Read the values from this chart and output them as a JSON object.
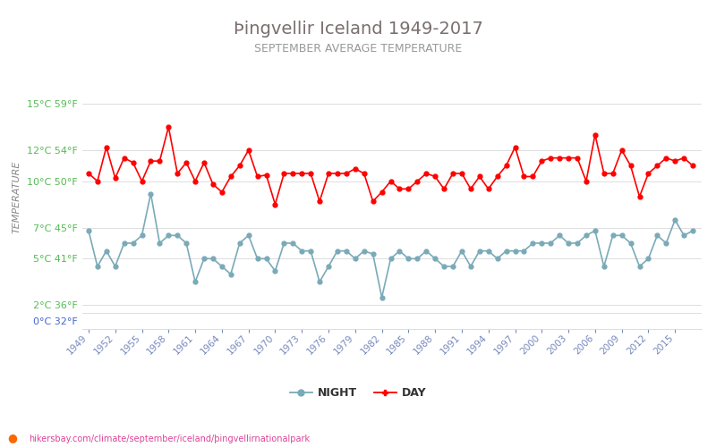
{
  "title": "Þingvellir Iceland 1949-2017",
  "subtitle": "SEPTEMBER AVERAGE TEMPERATURE",
  "ylabel": "TEMPERATURE",
  "years": [
    1949,
    1950,
    1951,
    1952,
    1953,
    1954,
    1955,
    1956,
    1957,
    1958,
    1959,
    1960,
    1961,
    1962,
    1963,
    1964,
    1965,
    1966,
    1967,
    1968,
    1969,
    1970,
    1971,
    1972,
    1973,
    1974,
    1975,
    1976,
    1977,
    1978,
    1979,
    1980,
    1981,
    1982,
    1983,
    1984,
    1985,
    1986,
    1987,
    1988,
    1989,
    1990,
    1991,
    1992,
    1993,
    1994,
    1995,
    1996,
    1997,
    1998,
    1999,
    2000,
    2001,
    2002,
    2003,
    2004,
    2005,
    2006,
    2007,
    2008,
    2009,
    2010,
    2011,
    2012,
    2013,
    2014,
    2015,
    2016,
    2017
  ],
  "day": [
    10.5,
    10.0,
    12.2,
    10.2,
    11.5,
    11.2,
    10.0,
    11.3,
    11.3,
    13.5,
    10.5,
    11.2,
    10.0,
    11.2,
    9.8,
    9.3,
    10.3,
    11.0,
    12.0,
    10.3,
    10.4,
    8.5,
    10.5,
    10.5,
    10.5,
    10.5,
    8.7,
    10.5,
    10.5,
    10.5,
    10.8,
    10.5,
    8.7,
    9.3,
    10.0,
    9.5,
    9.5,
    10.0,
    10.5,
    10.3,
    9.5,
    10.5,
    10.5,
    9.5,
    10.3,
    9.5,
    10.3,
    11.0,
    12.2,
    10.3,
    10.3,
    11.3,
    11.5,
    11.5,
    11.5,
    11.5,
    10.0,
    13.0,
    10.5,
    10.5,
    12.0,
    11.0,
    9.0,
    10.5,
    11.0,
    11.5,
    11.3,
    11.5,
    11.0
  ],
  "night": [
    6.8,
    4.5,
    5.5,
    4.5,
    6.0,
    6.0,
    6.5,
    9.2,
    6.0,
    6.5,
    6.5,
    6.0,
    3.5,
    5.0,
    5.0,
    4.5,
    4.0,
    6.0,
    6.5,
    5.0,
    5.0,
    4.2,
    6.0,
    6.0,
    5.5,
    5.5,
    3.5,
    4.5,
    5.5,
    5.5,
    5.0,
    5.5,
    5.3,
    2.5,
    5.0,
    5.5,
    5.0,
    5.0,
    5.5,
    5.0,
    4.5,
    4.5,
    5.5,
    4.5,
    5.5,
    5.5,
    5.0,
    5.5,
    5.5,
    5.5,
    6.0,
    6.0,
    6.0,
    6.5,
    6.0,
    6.0,
    6.5,
    6.8,
    4.5,
    6.5,
    6.5,
    6.0,
    4.5,
    5.0,
    6.5,
    6.0,
    7.5,
    6.5,
    6.8
  ],
  "xtick_years": [
    1949,
    1952,
    1955,
    1958,
    1961,
    1964,
    1967,
    1970,
    1973,
    1976,
    1979,
    1982,
    1985,
    1988,
    1991,
    1994,
    1997,
    2000,
    2003,
    2006,
    2009,
    2012,
    2015
  ],
  "main_yticks_c": [
    2,
    5,
    7,
    10,
    12,
    15
  ],
  "main_ytick_labels": [
    "2°C 36°F",
    "5°C 41°F",
    "7°C 45°F",
    "10°C 50°F",
    "12°C 54°F",
    "15°C 59°F"
  ],
  "zero_label": "0°C 32°F",
  "day_color": "#ff0000",
  "night_color": "#7aaab8",
  "title_color": "#7a6e6e",
  "subtitle_color": "#999999",
  "ytick_color": "#55bb55",
  "xtick_color": "#7788bb",
  "zero_label_color": "#4466cc",
  "ylabel_color": "#888888",
  "grid_color": "#dddddd",
  "bg_color": "#ffffff",
  "watermark_dot_color": "#ff6600",
  "watermark_text_color": "#dd4499",
  "watermark": "hikersbay.com/climate/september/iceland/þingvellirnationalpark",
  "legend_night": "NIGHT",
  "legend_day": "DAY",
  "legend_text_color": "#333333",
  "marker_size": 3.5,
  "line_width": 1.2
}
